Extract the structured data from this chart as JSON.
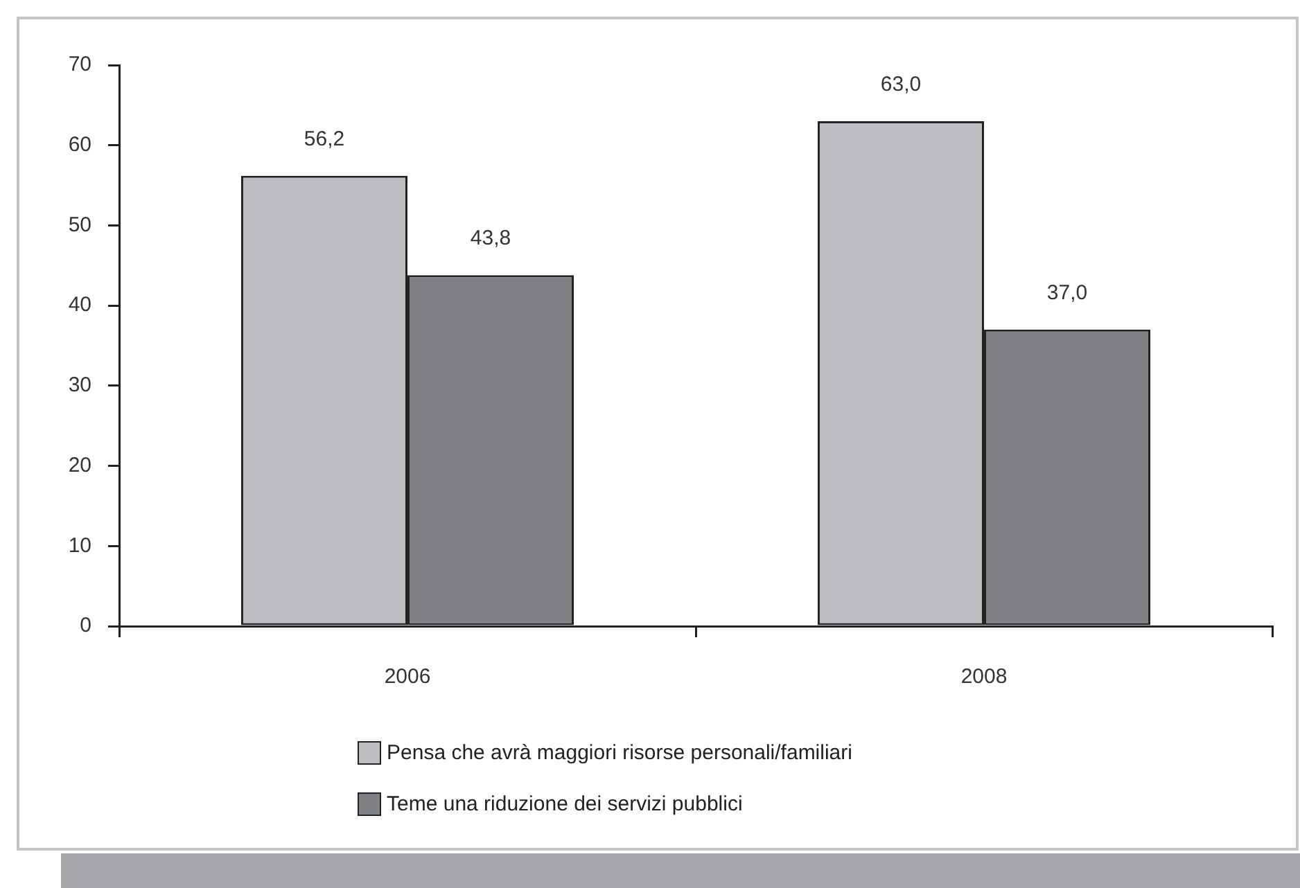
{
  "chart_data": {
    "type": "bar",
    "categories": [
      "2006",
      "2008"
    ],
    "series": [
      {
        "name": "Pensa che avrà maggiori risorse personali/familiari",
        "color": "#bcbdc1",
        "values": [
          56.2,
          63.0
        ],
        "value_labels": [
          "56,2",
          "63,0"
        ]
      },
      {
        "name": "Teme una riduzione dei servizi pubblici",
        "color": "#808185",
        "values": [
          43.8,
          37.0
        ],
        "value_labels": [
          "43,8",
          "37,0"
        ]
      }
    ],
    "ylim": [
      0,
      70
    ],
    "yticks": [
      0,
      10,
      20,
      30,
      40,
      50,
      60,
      70
    ],
    "legend": "bottom"
  }
}
